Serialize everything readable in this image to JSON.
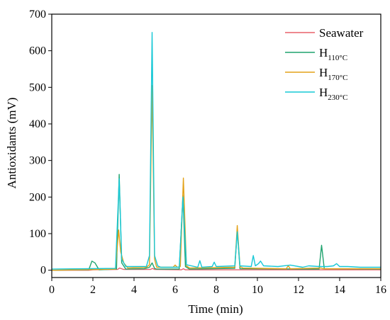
{
  "chart_data": {
    "type": "line",
    "title": "",
    "xlabel": "Time (min)",
    "ylabel": "Antioxidants (mV)",
    "xlim": [
      0,
      16
    ],
    "ylim": [
      -20,
      700
    ],
    "xticks": [
      0,
      2,
      4,
      6,
      8,
      10,
      12,
      14,
      16
    ],
    "yticks": [
      0,
      100,
      200,
      300,
      400,
      500,
      600,
      700
    ],
    "grid": false,
    "legend_position": "top-right",
    "legend": [
      {
        "prefix": "Seawater",
        "sub": ""
      },
      {
        "prefix": "H",
        "sub": "110°C"
      },
      {
        "prefix": "H",
        "sub": "170°C"
      },
      {
        "prefix": "H",
        "sub": "230°C"
      }
    ],
    "series": [
      {
        "name": "Seawater",
        "color": "#e8606a",
        "x": [
          0,
          1.8,
          2.0,
          3.2,
          3.3,
          3.5,
          4.8,
          4.9,
          5.0,
          6.3,
          6.4,
          6.5,
          9.0,
          13.1,
          16
        ],
        "y": [
          0,
          0,
          1,
          2,
          6,
          2,
          2,
          5,
          2,
          1,
          4,
          1,
          1,
          1,
          1
        ]
      },
      {
        "name": "H110°C",
        "color": "#1fa36e",
        "x": [
          0,
          1.8,
          1.95,
          2.1,
          2.3,
          3.15,
          3.28,
          3.4,
          3.6,
          4.5,
          4.75,
          4.88,
          5.0,
          5.1,
          6.2,
          6.38,
          6.5,
          6.7,
          8.9,
          9.02,
          9.15,
          13.0,
          13.12,
          13.25,
          16
        ],
        "y": [
          0,
          1,
          25,
          20,
          1,
          3,
          262,
          20,
          3,
          4,
          8,
          20,
          5,
          3,
          3,
          205,
          10,
          3,
          5,
          110,
          4,
          3,
          68,
          4,
          3
        ]
      },
      {
        "name": "H170°C",
        "color": "#e3a219",
        "x": [
          0,
          3.1,
          3.25,
          3.35,
          3.5,
          3.7,
          4.6,
          4.75,
          4.88,
          5.0,
          5.1,
          5.9,
          6.0,
          6.1,
          6.25,
          6.4,
          6.55,
          6.7,
          8.9,
          9.02,
          9.15,
          9.3,
          11.4,
          11.5,
          11.6,
          13.1,
          13.2,
          16
        ],
        "y": [
          0,
          3,
          110,
          50,
          20,
          6,
          8,
          15,
          505,
          30,
          8,
          8,
          14,
          8,
          10,
          252,
          12,
          6,
          8,
          122,
          10,
          6,
          4,
          12,
          4,
          6,
          4,
          4
        ]
      },
      {
        "name": "H230°C",
        "color": "#17c8d6",
        "x": [
          0,
          3.1,
          3.28,
          3.4,
          3.6,
          4.6,
          4.75,
          4.88,
          5.0,
          5.15,
          5.3,
          6.2,
          6.38,
          6.55,
          7.1,
          7.2,
          7.3,
          7.8,
          7.9,
          8.0,
          8.9,
          9.02,
          9.15,
          9.7,
          9.8,
          9.9,
          10.05,
          10.15,
          10.3,
          11.0,
          11.6,
          12.2,
          12.5,
          13.0,
          13.4,
          13.7,
          13.85,
          14.0,
          14.4,
          15.0,
          15.5,
          16
        ],
        "y": [
          3,
          5,
          250,
          30,
          10,
          10,
          40,
          650,
          40,
          12,
          8,
          8,
          200,
          15,
          8,
          26,
          8,
          10,
          22,
          10,
          12,
          105,
          12,
          10,
          40,
          12,
          18,
          25,
          12,
          10,
          14,
          8,
          12,
          10,
          10,
          12,
          18,
          10,
          10,
          8,
          8,
          8
        ]
      }
    ]
  }
}
